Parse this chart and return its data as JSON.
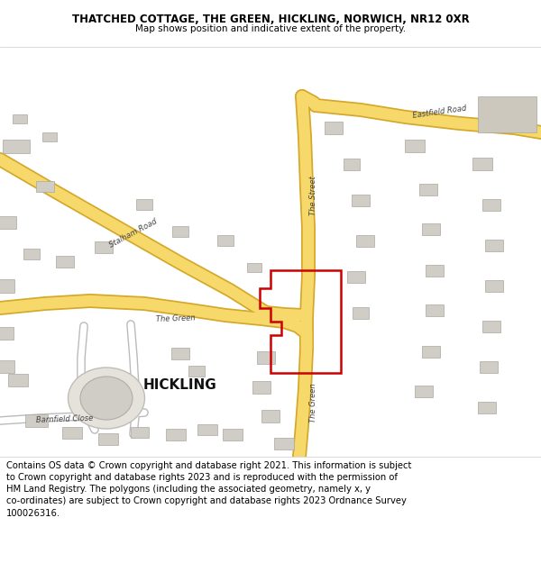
{
  "title": "THATCHED COTTAGE, THE GREEN, HICKLING, NORWICH, NR12 0XR",
  "subtitle": "Map shows position and indicative extent of the property.",
  "footer": "Contains OS data © Crown copyright and database right 2021. This information is subject\nto Crown copyright and database rights 2023 and is reproduced with the permission of\nHM Land Registry. The polygons (including the associated geometry, namely x, y\nco-ordinates) are subject to Crown copyright and database rights 2023 Ordnance Survey\n100026316.",
  "title_fontsize": 8.5,
  "subtitle_fontsize": 7.5,
  "footer_fontsize": 7.2,
  "map_bg": "#f2f0ed",
  "road_yellow": "#f7d96b",
  "road_yellow_border": "#d4a82a",
  "red_polygon": "#cc0000",
  "hickling_label_size": 11,
  "road_label_size": 6.0,
  "header_bg": "#ffffff",
  "footer_bg": "#ffffff",
  "building_fill": "#d0cdc6",
  "building_stroke": "#aaa89f"
}
